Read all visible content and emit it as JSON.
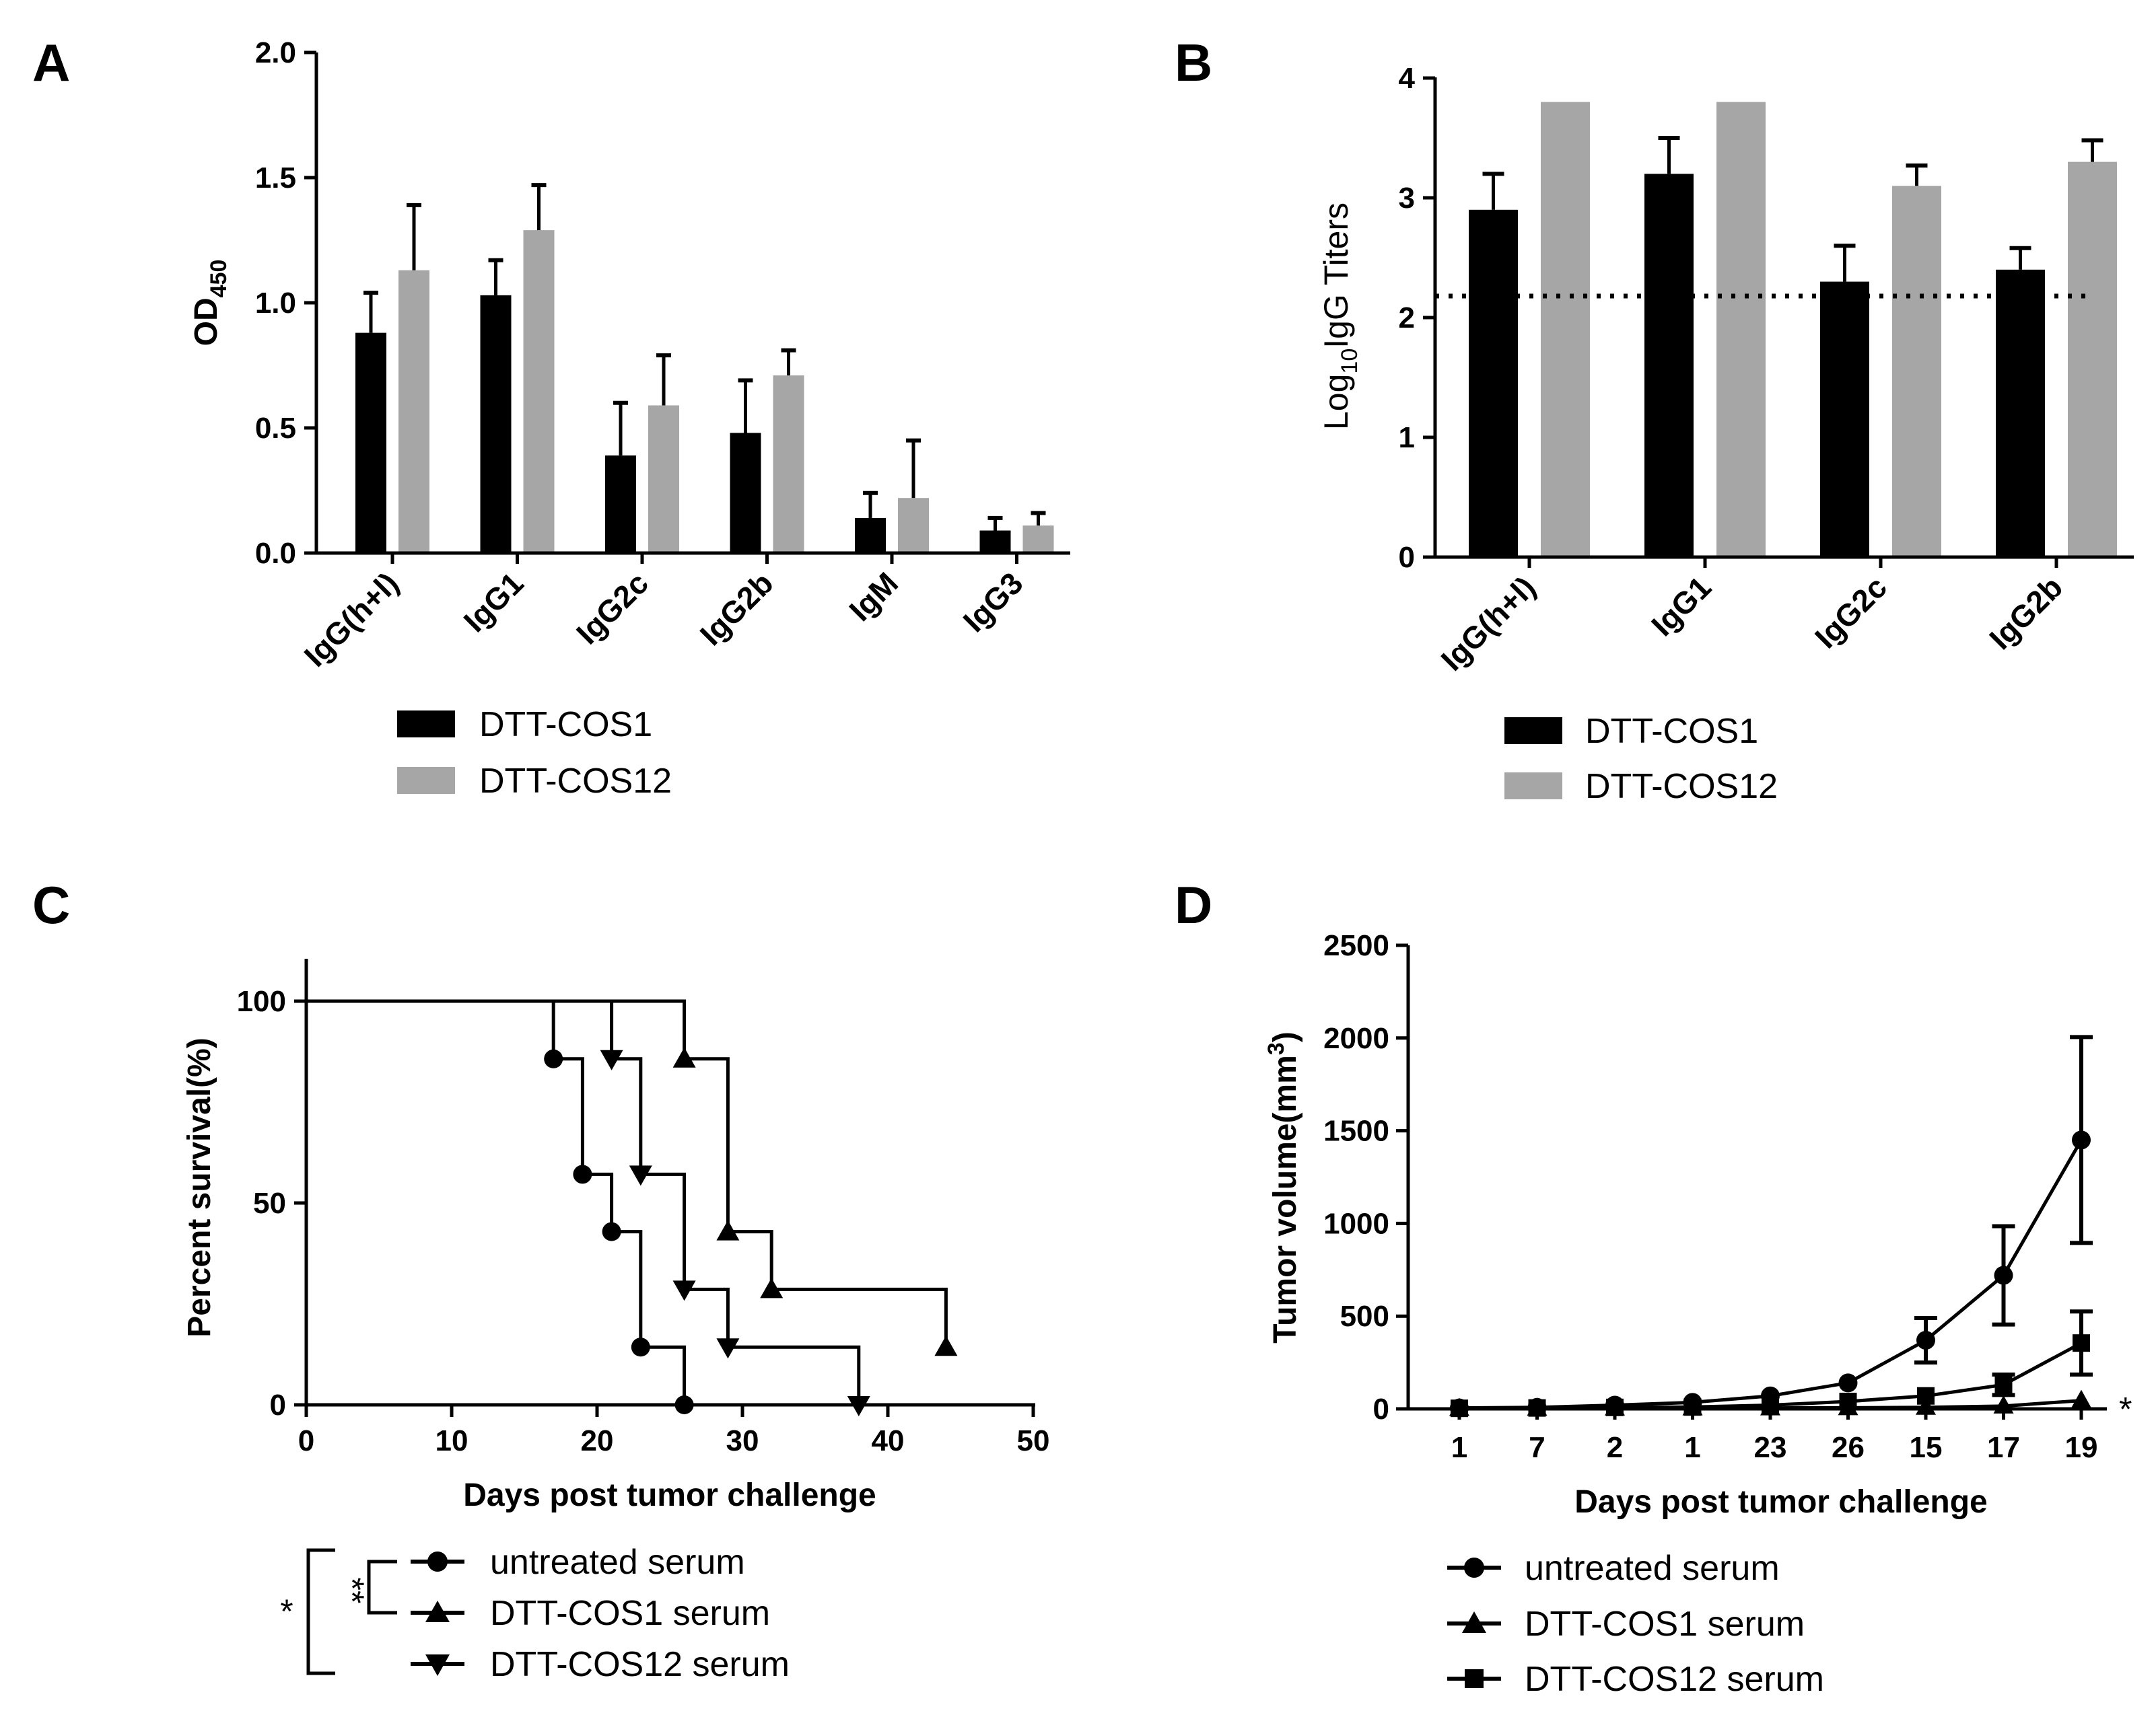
{
  "chart_data": [
    {
      "panel": "A",
      "type": "bar",
      "categories": [
        "IgG(h+l)",
        "IgG1",
        "IgG2c",
        "IgG2b",
        "IgM",
        "IgG3"
      ],
      "series": [
        {
          "name": "DTT-COS1",
          "color": "#000000",
          "values": [
            0.88,
            1.03,
            0.39,
            0.48,
            0.14,
            0.09
          ],
          "errors": [
            0.16,
            0.14,
            0.21,
            0.21,
            0.1,
            0.05
          ]
        },
        {
          "name": "DTT-COS12",
          "color": "#a6a6a6",
          "values": [
            1.13,
            1.29,
            0.59,
            0.71,
            0.22,
            0.11
          ],
          "errors": [
            0.26,
            0.18,
            0.2,
            0.1,
            0.23,
            0.05
          ]
        }
      ],
      "ylabel_main": "OD",
      "ylabel_sub": "450",
      "ylim": [
        0,
        2.0
      ],
      "yticks": [
        "0.0",
        "0.5",
        "1.0",
        "1.5",
        "2.0"
      ]
    },
    {
      "panel": "B",
      "type": "bar",
      "categories": [
        "IgG(h+l)",
        "IgG1",
        "IgG2c",
        "IgG2b"
      ],
      "series": [
        {
          "name": "DTT-COS1",
          "color": "#000000",
          "values": [
            2.9,
            3.2,
            2.3,
            2.4
          ],
          "errors": [
            0.3,
            0.3,
            0.3,
            0.18
          ]
        },
        {
          "name": "DTT-COS12",
          "color": "#a6a6a6",
          "values": [
            3.8,
            3.8,
            3.1,
            3.3
          ],
          "errors": [
            0,
            0,
            0.17,
            0.18
          ]
        }
      ],
      "ylabel_pre": "Log",
      "ylabel_sub": "10",
      "ylabel_post": "IgG Titers",
      "ylim": [
        0,
        4
      ],
      "yticks": [
        "0",
        "1",
        "2",
        "3",
        "4"
      ],
      "threshold": 2.18
    },
    {
      "panel": "C",
      "type": "line",
      "xlabel": "Days post tumor challenge",
      "ylabel": "Percent survival(%)",
      "xlim": [
        0,
        50
      ],
      "ylim": [
        0,
        110
      ],
      "xticks": [
        "0",
        "10",
        "20",
        "30",
        "40",
        "50"
      ],
      "yticks": [
        "0",
        "50",
        "100"
      ],
      "series": [
        {
          "name": "untreated serum",
          "marker": "circle",
          "steps": [
            [
              0,
              100
            ],
            [
              17,
              85.7
            ],
            [
              19,
              57.1
            ],
            [
              21,
              42.9
            ],
            [
              23,
              14.3
            ],
            [
              26,
              0
            ]
          ]
        },
        {
          "name": "DTT-COS1 serum",
          "marker": "triangle-up",
          "steps": [
            [
              0,
              100
            ],
            [
              26,
              85.7
            ],
            [
              29,
              42.9
            ],
            [
              32,
              28.6
            ],
            [
              44,
              14.3
            ]
          ]
        },
        {
          "name": "DTT-COS12 serum",
          "marker": "triangle-down",
          "steps": [
            [
              0,
              100
            ],
            [
              21,
              85.7
            ],
            [
              23,
              57.1
            ],
            [
              26,
              28.6
            ],
            [
              29,
              14.3
            ],
            [
              38,
              0
            ]
          ]
        }
      ],
      "significance": {
        "inner": "**",
        "outer": "*"
      }
    },
    {
      "panel": "D",
      "type": "line",
      "xlabel": "Days post tumor challenge",
      "ylabel_main": "Tumor volume(mm",
      "ylabel_sup": "3",
      "ylabel_end": ")",
      "ylim": [
        0,
        2500
      ],
      "yticks": [
        "0",
        "500",
        "1000",
        "1500",
        "2000",
        "2500"
      ],
      "categories": [
        "1",
        "7",
        "2",
        "1",
        "23",
        "26",
        "15",
        "17",
        "19"
      ],
      "series": [
        {
          "name": "untreated serum",
          "marker": "circle",
          "values": [
            5,
            8,
            20,
            35,
            70,
            140,
            370,
            720,
            1450
          ],
          "errors": [
            0,
            0,
            0,
            0,
            0,
            0,
            120,
            265,
            555
          ]
        },
        {
          "name": "DTT-COS1 serum",
          "marker": "triangle-up",
          "values": [
            2,
            3,
            4,
            5,
            5,
            6,
            8,
            15,
            45
          ],
          "errors": [
            0,
            0,
            0,
            0,
            0,
            0,
            0,
            0,
            0
          ]
        },
        {
          "name": "DTT-COS12 serum",
          "marker": "square",
          "values": [
            3,
            5,
            8,
            10,
            20,
            40,
            70,
            130,
            355
          ],
          "errors": [
            0,
            0,
            0,
            0,
            0,
            0,
            0,
            55,
            170
          ]
        }
      ],
      "significance": "*"
    }
  ]
}
